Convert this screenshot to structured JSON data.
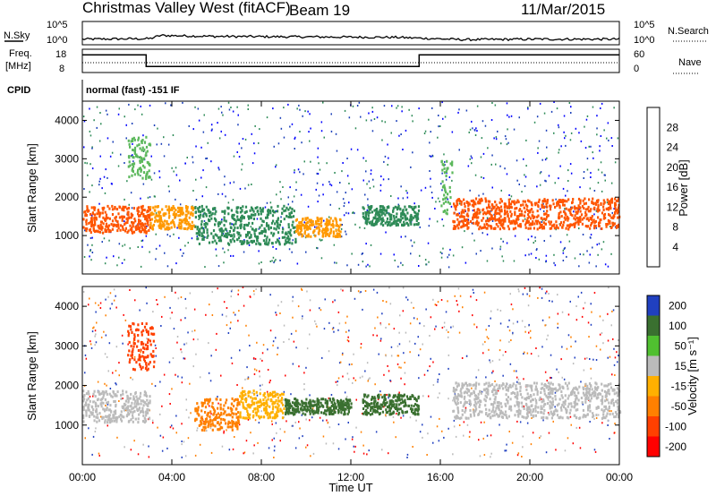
{
  "header": {
    "station": "Christmas Valley West (fitACF)",
    "beam": "Beam 19",
    "date": "11/Mar/2015"
  },
  "strip_labels": {
    "nsky": "N.Sky",
    "nsearch": "N.Search",
    "freq_line1": "Freq.",
    "freq_line2": "[MHz]",
    "nave": "Nave",
    "cpid": "CPID",
    "cpid_value": "normal (fast) -151 IF",
    "noise_left_ticks": [
      "10^5",
      "10^0"
    ],
    "noise_right_ticks": [
      "10^5",
      "10^0"
    ],
    "freq_left_ticks": [
      "18",
      "8"
    ],
    "nave_right_ticks": [
      "60",
      "0"
    ]
  },
  "colors": {
    "power": [
      "#0000ff",
      "#1a3fb8",
      "#2e8b57",
      "#5cb85c",
      "#ffcc00",
      "#ff9900",
      "#ff5500",
      "#ff0000"
    ],
    "velocity": [
      "#2040c0",
      "#3a7030",
      "#50c030",
      "#bbbbbb",
      "#ffb000",
      "#ff8000",
      "#ff4000",
      "#ff0000"
    ],
    "trace": "#000000"
  },
  "chart_data": [
    {
      "type": "line",
      "title": "",
      "xlabel": "",
      "ylabel": "",
      "series": [
        {
          "name": "N.Sky",
          "x": [
            0,
            3,
            3.5,
            6,
            10,
            14,
            17,
            20,
            24
          ],
          "values": [
            1.2,
            1.3,
            2.0,
            1.8,
            1.7,
            1.6,
            1.1,
            1.2,
            1.2
          ]
        }
      ],
      "ylim": [
        0,
        5
      ]
    },
    {
      "type": "line",
      "series": [
        {
          "name": "Freq.",
          "x": [
            0,
            2.85,
            2.85,
            15.05,
            15.05,
            24
          ],
          "values": [
            15.6,
            15.6,
            10.6,
            10.6,
            15.6,
            15.6
          ]
        },
        {
          "name": "Nave",
          "x": [
            0,
            24
          ],
          "values": [
            17,
            17
          ]
        }
      ],
      "ylim": [
        8,
        18
      ]
    },
    {
      "type": "heatmap",
      "title": "",
      "xlabel": "",
      "ylabel": "Slant Range [km]",
      "xlim": [
        0,
        24
      ],
      "ylim": [
        0,
        4500
      ],
      "x_ticks": [
        "00:00",
        "04:00",
        "08:00",
        "12:00",
        "16:00",
        "20:00",
        "00:00"
      ],
      "y_ticks": [
        1000,
        2000,
        3000,
        4000
      ],
      "colorbar": {
        "label": "Power [dB]",
        "ticks": [
          4,
          8,
          12,
          16,
          20,
          24,
          28
        ]
      },
      "features": [
        {
          "hours": [
            0,
            3.0
          ],
          "range_km": [
            1100,
            1800
          ],
          "value": 26
        },
        {
          "hours": [
            2.0,
            3.0
          ],
          "range_km": [
            2500,
            3600
          ],
          "value": 14
        },
        {
          "hours": [
            3.0,
            5.0
          ],
          "range_km": [
            1200,
            1800
          ],
          "value": 22
        },
        {
          "hours": [
            5.0,
            9.5
          ],
          "range_km": [
            800,
            1800
          ],
          "value": 10
        },
        {
          "hours": [
            9.5,
            11.5
          ],
          "range_km": [
            1000,
            1500
          ],
          "value": 22
        },
        {
          "hours": [
            12.5,
            15
          ],
          "range_km": [
            1300,
            1800
          ],
          "value": 8
        },
        {
          "hours": [
            16.5,
            24
          ],
          "range_km": [
            1200,
            2000
          ],
          "value": 24
        },
        {
          "hours": [
            16.0,
            16.5
          ],
          "range_km": [
            1500,
            3000
          ],
          "value": 12
        }
      ]
    },
    {
      "type": "heatmap",
      "title": "",
      "xlabel": "Time UT",
      "ylabel": "Slant Range [km]",
      "xlim": [
        0,
        24
      ],
      "ylim": [
        0,
        4500
      ],
      "x_ticks": [
        "00:00",
        "04:00",
        "08:00",
        "12:00",
        "16:00",
        "20:00",
        "00:00"
      ],
      "y_ticks": [
        1000,
        2000,
        3000,
        4000
      ],
      "colorbar": {
        "label": "Velocity [m s⁻¹]",
        "ticks": [
          200,
          100,
          50,
          15,
          -15,
          -50,
          -100,
          -200
        ]
      },
      "features": [
        {
          "hours": [
            0,
            3.0
          ],
          "range_km": [
            1100,
            1900
          ],
          "value": 0
        },
        {
          "hours": [
            2.0,
            3.2
          ],
          "range_km": [
            2400,
            3600
          ],
          "value": -200
        },
        {
          "hours": [
            5.0,
            7.0
          ],
          "range_km": [
            900,
            1700
          ],
          "value": -100
        },
        {
          "hours": [
            7.0,
            9.0
          ],
          "range_km": [
            1200,
            1900
          ],
          "value": -50
        },
        {
          "hours": [
            9.0,
            12.0
          ],
          "range_km": [
            1300,
            1700
          ],
          "value": 50
        },
        {
          "hours": [
            12.5,
            15
          ],
          "range_km": [
            1300,
            1800
          ],
          "value": 50
        },
        {
          "hours": [
            16.5,
            24
          ],
          "range_km": [
            1200,
            2100
          ],
          "value": 0
        }
      ]
    }
  ]
}
